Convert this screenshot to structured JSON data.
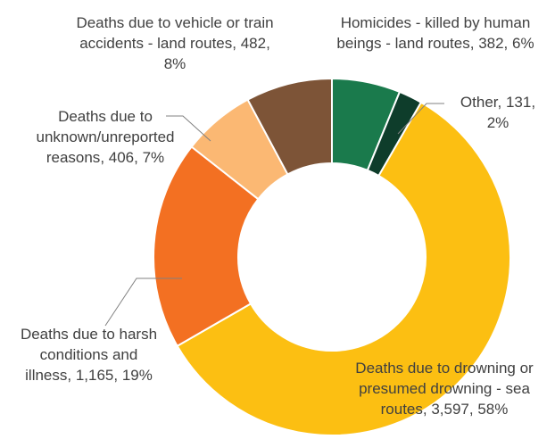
{
  "chart_data": {
    "type": "donut",
    "categories": [
      "Homicides - killed by human beings - land routes",
      "Other",
      "Deaths due to drowning or presumed drowning - sea routes",
      "Deaths due to harsh conditions and illness",
      "Deaths due to unknown/unreported reasons",
      "Deaths due to vehicle or train accidents - land routes"
    ],
    "values": [
      382,
      131,
      3597,
      1165,
      406,
      482
    ],
    "value_labels": [
      "382, 6%",
      "131, 2%",
      "3,597, 58%",
      "1,165, 19%",
      "406, 7%",
      "482, 8%"
    ],
    "colors": [
      "#1a7a4c",
      "#0e3d2b",
      "#fcbf12",
      "#f37022",
      "#fbb873",
      "#7d5437"
    ]
  }
}
